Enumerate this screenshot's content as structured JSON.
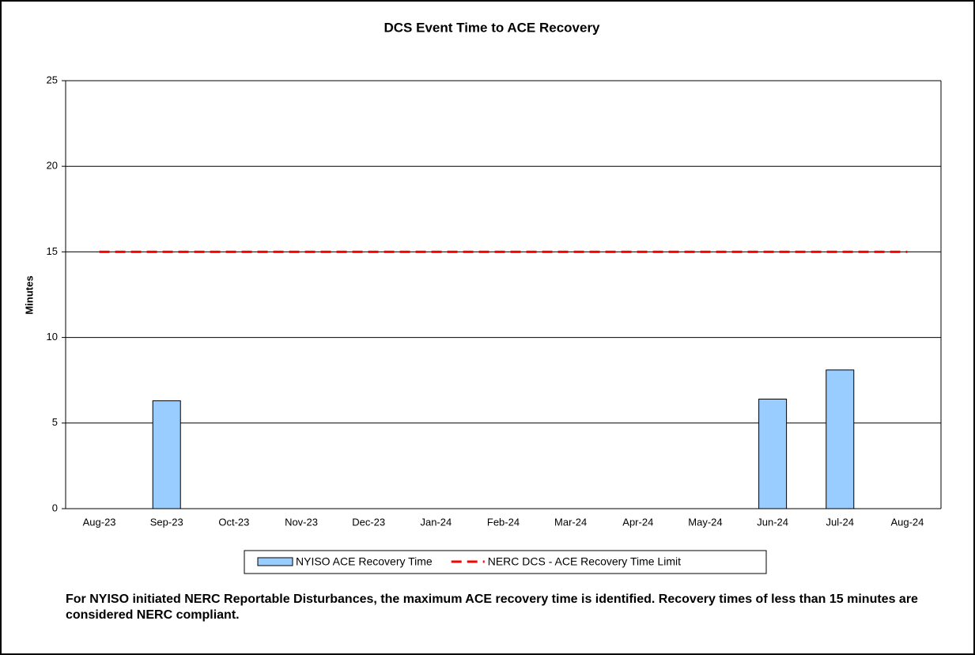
{
  "chart_data": {
    "type": "bar_line",
    "title": "DCS Event Time to ACE Recovery",
    "y_label": "Minutes",
    "categories": [
      "Aug-23",
      "Sep-23",
      "Oct-23",
      "Nov-23",
      "Dec-23",
      "Jan-24",
      "Feb-24",
      "Mar-24",
      "Apr-24",
      "May-24",
      "Jun-24",
      "Jul-24",
      "Aug-24"
    ],
    "series": [
      {
        "name": "NYISO ACE Recovery Time",
        "type": "bar",
        "color": "#99ccff",
        "values": [
          null,
          6.3,
          null,
          null,
          null,
          null,
          null,
          null,
          null,
          null,
          6.4,
          8.1,
          null
        ]
      },
      {
        "name": "NERC DCS - ACE Recovery Time Limit",
        "type": "line",
        "color": "#ff0000",
        "values": [
          15,
          15,
          15,
          15,
          15,
          15,
          15,
          15,
          15,
          15,
          15,
          15,
          15
        ]
      }
    ],
    "ylim": [
      0,
      25
    ],
    "yticks": [
      0,
      5,
      10,
      15,
      20,
      25
    ],
    "grid": true,
    "note": "For NYISO initiated NERC Reportable Disturbances, the maximum ACE recovery time is identified. Recovery times of less than 15 minutes are considered NERC compliant."
  }
}
